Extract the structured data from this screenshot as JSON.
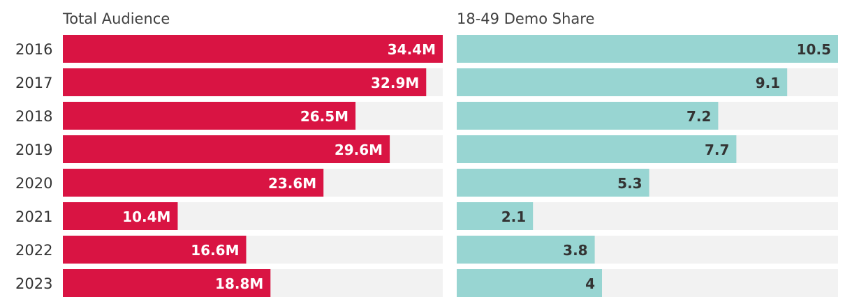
{
  "chart_data": {
    "type": "bar",
    "orientation": "horizontal",
    "categories": [
      "2016",
      "2017",
      "2018",
      "2019",
      "2020",
      "2021",
      "2022",
      "2023"
    ],
    "panels": [
      {
        "title": "Total Audience",
        "color": "#d91443",
        "track_color": "#f2f2f2",
        "max": 34.4,
        "values": [
          34.4,
          32.9,
          26.5,
          29.6,
          23.6,
          10.4,
          16.6,
          18.8
        ],
        "labels": [
          "34.4M",
          "32.9M",
          "26.5M",
          "29.6M",
          "23.6M",
          "10.4M",
          "16.6M",
          "18.8M"
        ]
      },
      {
        "title": "18-49 Demo Share",
        "color": "#98d5d2",
        "track_color": "#f2f2f2",
        "max": 10.5,
        "values": [
          10.5,
          9.1,
          7.2,
          7.7,
          5.3,
          2.1,
          3.8,
          4
        ],
        "labels": [
          "10.5",
          "9.1",
          "7.2",
          "7.7",
          "5.3",
          "2.1",
          "3.8",
          "4"
        ]
      }
    ]
  }
}
